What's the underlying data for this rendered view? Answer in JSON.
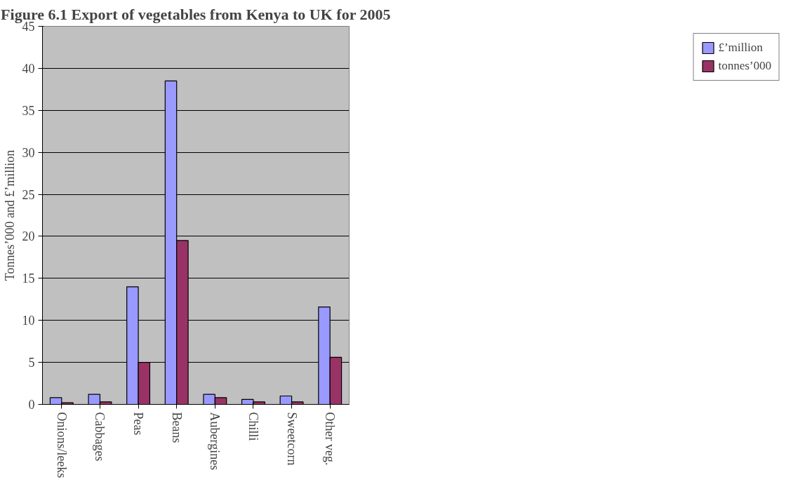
{
  "chart_data": {
    "type": "bar",
    "title": "Figure 6.1 Export of vegetables from Kenya to UK for 2005",
    "ylabel": "Tonnes’000 and £’million",
    "categories": [
      "Onions/leeks",
      "Cabbages",
      "Peas",
      "Beans",
      "Aubergines",
      "Chilli",
      "Sweetcorn",
      "Other veg."
    ],
    "series": [
      {
        "name": "£’million",
        "color": "#9999ff",
        "values": [
          0.8,
          1.2,
          14.0,
          38.5,
          1.2,
          0.6,
          1.0,
          11.6
        ]
      },
      {
        "name": "tonnes’000",
        "color": "#993366",
        "values": [
          0.2,
          0.3,
          5.0,
          19.5,
          0.8,
          0.3,
          0.3,
          5.6
        ]
      }
    ],
    "ylim": [
      0,
      45
    ],
    "yticks": [
      0,
      5,
      10,
      15,
      20,
      25,
      30,
      35,
      40,
      45
    ],
    "grid": "y",
    "legend": "right"
  }
}
